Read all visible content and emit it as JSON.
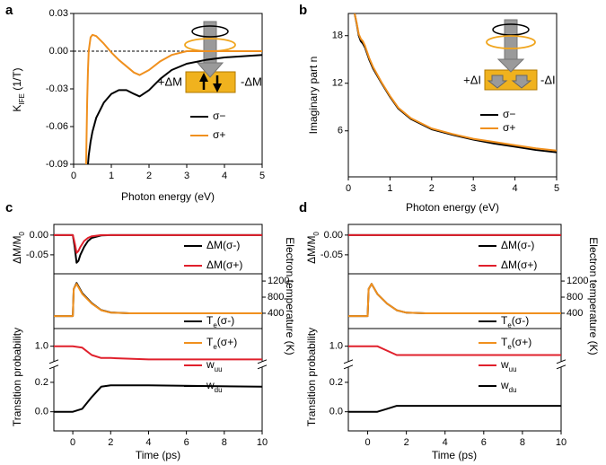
{
  "chart_data": [
    {
      "type": "line",
      "panel": "a",
      "xlabel": "Photon energy (eV)",
      "ylabel": "KIFE (1/T)",
      "xlim": [
        0,
        5
      ],
      "xticks": [
        0,
        1,
        2,
        3,
        4,
        5
      ],
      "ylim": [
        -0.09,
        0.03
      ],
      "yticks": [
        -0.09,
        -0.06,
        -0.03,
        {
          "value": 0,
          "label": "0.00"
        },
        0.03
      ],
      "zero_line": "dashed",
      "legend": "lower right",
      "annotations": [
        "+ΔM",
        "-ΔM"
      ],
      "x": [
        0.33,
        0.36,
        0.38,
        0.4,
        0.45,
        0.5,
        0.6,
        0.8,
        1.0,
        1.2,
        1.4,
        1.6,
        1.75,
        2.0,
        2.3,
        2.6,
        3.0,
        3.5,
        4.0,
        4.5,
        5.0
      ],
      "series": [
        {
          "name": "σ−",
          "color": "#000000",
          "values": [
            null,
            null,
            -0.09,
            -0.083,
            -0.072,
            -0.064,
            -0.053,
            -0.041,
            -0.034,
            -0.031,
            -0.031,
            -0.034,
            -0.036,
            -0.031,
            -0.022,
            -0.015,
            -0.01,
            -0.007,
            -0.005,
            -0.004,
            -0.003
          ]
        },
        {
          "name": "σ+",
          "color": "#f0901e",
          "values": [
            -0.09,
            -0.04,
            -0.015,
            0.0,
            0.011,
            0.013,
            0.012,
            0.006,
            -0.001,
            -0.007,
            -0.012,
            -0.017,
            -0.019,
            -0.015,
            -0.008,
            -0.003,
            0.0,
            0.0,
            0.0,
            0.0,
            0.0
          ]
        }
      ]
    },
    {
      "type": "line",
      "panel": "b",
      "xlabel": "Photon energy (eV)",
      "ylabel": "Imaginary part n",
      "xlim": [
        0,
        5
      ],
      "xticks": [
        0,
        1,
        2,
        3,
        4,
        5
      ],
      "ylim": [
        0.2,
        20.8
      ],
      "yticks": [
        6,
        12,
        18
      ],
      "legend": "lower right",
      "annotations": [
        "+ΔI",
        "-ΔI"
      ],
      "x": [
        0.15,
        0.2,
        0.25,
        0.3,
        0.35,
        0.4,
        0.5,
        0.6,
        0.8,
        1.0,
        1.2,
        1.5,
        2.0,
        2.5,
        3.0,
        3.5,
        4.0,
        4.5,
        5.0
      ],
      "series": [
        {
          "name": "σ−",
          "color": "#000000",
          "values": [
            20.8,
            19.5,
            18.0,
            17.3,
            17.0,
            16.5,
            15.0,
            13.8,
            12.0,
            10.3,
            8.8,
            7.5,
            6.2,
            5.5,
            4.9,
            4.4,
            4.0,
            3.6,
            3.3
          ]
        },
        {
          "name": "σ+",
          "color": "#f0901e",
          "values": [
            20.8,
            19.6,
            18.2,
            17.6,
            17.3,
            16.7,
            15.2,
            14.0,
            12.1,
            10.4,
            8.9,
            7.6,
            6.3,
            5.6,
            5.0,
            4.6,
            4.2,
            3.8,
            3.5
          ]
        }
      ]
    },
    {
      "type": "line",
      "panel": "c",
      "ylabel": "ΔM/M0",
      "xlim": [
        -1,
        10
      ],
      "ylim": [
        -0.098,
        0.027
      ],
      "yticks": [
        {
          "value": 0,
          "label": "0.00"
        },
        -0.05
      ],
      "legend": "lower right",
      "x": [
        -1,
        0,
        0.1,
        0.2,
        0.3,
        0.4,
        0.6,
        0.8,
        1.0,
        1.5,
        2,
        4,
        10
      ],
      "series": [
        {
          "name": "ΔM(σ-)",
          "color": "#000000",
          "values": [
            0,
            0,
            -0.03,
            -0.07,
            -0.065,
            -0.05,
            -0.03,
            -0.015,
            -0.007,
            -0.001,
            0,
            0,
            0
          ]
        },
        {
          "name": "ΔM(σ+)",
          "color": "#e0202c",
          "values": [
            0,
            0,
            -0.02,
            -0.045,
            -0.04,
            -0.03,
            -0.015,
            -0.007,
            -0.003,
            0,
            0,
            0,
            0
          ]
        }
      ]
    },
    {
      "type": "line",
      "y2label": "Electron temperature (K)",
      "xlim": [
        -1,
        10
      ],
      "y2lim": [
        20,
        1380
      ],
      "y2ticks": [
        400,
        800,
        1200
      ],
      "legend": "lower right",
      "x": [
        -1,
        0,
        0.05,
        0.2,
        0.5,
        1.0,
        1.5,
        2,
        3,
        10
      ],
      "series": [
        {
          "name": "Te(σ-)",
          "color": "#000000",
          "axis": "y2",
          "values": [
            330,
            330,
            1000,
            1150,
            900,
            650,
            480,
            420,
            400,
            400
          ]
        },
        {
          "name": "Te(σ+)",
          "color": "#f0901e",
          "axis": "y2",
          "values": [
            330,
            330,
            1000,
            1130,
            880,
            640,
            475,
            415,
            398,
            398
          ]
        }
      ]
    },
    {
      "type": "line",
      "ylabel": "Transition probability",
      "xlabel": "Time (ps)",
      "xlim": [
        -1,
        10
      ],
      "xticks": [
        0,
        2,
        4,
        6,
        8,
        10
      ],
      "ylim": [
        -0.13,
        1.12
      ],
      "ybreak": [
        0.28,
        0.92
      ],
      "yticks": [
        {
          "value": 0,
          "label": "0.0"
        },
        0.2,
        {
          "value": 1,
          "label": "1.0"
        }
      ],
      "legend": "lower right",
      "x": [
        -1,
        0,
        0.5,
        1.0,
        1.5,
        2,
        4,
        10
      ],
      "series": [
        {
          "name": "wuu",
          "color": "#e0202c",
          "values": [
            1.0,
            1.0,
            0.99,
            0.94,
            0.92,
            0.92,
            0.91,
            0.91
          ]
        },
        {
          "name": "wdu",
          "color": "#000000",
          "values": [
            0,
            0,
            0.02,
            0.1,
            0.17,
            0.18,
            0.18,
            0.17
          ]
        }
      ]
    },
    {
      "type": "line",
      "panel": "d",
      "ylabel": "ΔM/M0",
      "xlim": [
        -1,
        10
      ],
      "ylim": [
        -0.098,
        0.027
      ],
      "yticks": [
        {
          "value": 0,
          "label": "0.00"
        },
        -0.05
      ],
      "legend": "lower right",
      "x": [
        -1,
        0,
        0.1,
        0.2,
        0.3,
        0.4,
        0.6,
        0.8,
        1.0,
        1.5,
        2,
        4,
        10
      ],
      "series": [
        {
          "name": "ΔM(σ-)",
          "color": "#000000",
          "values": [
            0,
            0,
            0,
            0,
            0,
            0,
            0,
            0,
            0,
            0,
            0,
            0,
            0
          ]
        },
        {
          "name": "ΔM(σ+)",
          "color": "#e0202c",
          "values": [
            0,
            0,
            0,
            0,
            0,
            0,
            0,
            0,
            0,
            0,
            0,
            0,
            0
          ]
        }
      ]
    },
    {
      "type": "line",
      "y2label": "Electron temperature (K)",
      "xlim": [
        -1,
        10
      ],
      "y2lim": [
        20,
        1380
      ],
      "y2ticks": [
        400,
        800,
        1200
      ],
      "legend": "lower right",
      "x": [
        -1,
        0,
        0.05,
        0.2,
        0.5,
        1.0,
        1.5,
        2,
        3,
        10
      ],
      "series": [
        {
          "name": "Te(σ-)",
          "color": "#000000",
          "axis": "y2",
          "values": [
            330,
            330,
            1000,
            1130,
            880,
            640,
            475,
            415,
            400,
            400
          ]
        },
        {
          "name": "Te(σ+)",
          "color": "#f0901e",
          "axis": "y2",
          "values": [
            330,
            330,
            1000,
            1130,
            880,
            640,
            475,
            415,
            400,
            400
          ]
        }
      ]
    },
    {
      "type": "line",
      "ylabel": "Transition probability",
      "xlabel": "Time (ps)",
      "xlim": [
        -1,
        10
      ],
      "xticks": [
        0,
        2,
        4,
        6,
        8,
        10
      ],
      "ylim": [
        -0.13,
        1.12
      ],
      "ybreak": [
        0.28,
        0.92
      ],
      "yticks": [
        {
          "value": 0,
          "label": "0.0"
        },
        0.2,
        {
          "value": 1,
          "label": "1.0"
        }
      ],
      "legend": "lower right",
      "x": [
        -1,
        0,
        0.5,
        1.0,
        1.5,
        2,
        4,
        10
      ],
      "series": [
        {
          "name": "wuu",
          "color": "#e0202c",
          "values": [
            1.0,
            1.0,
            1.0,
            0.97,
            0.94,
            0.94,
            0.94,
            0.94
          ]
        },
        {
          "name": "wdu",
          "color": "#000000",
          "values": [
            0,
            0,
            0,
            0.02,
            0.04,
            0.04,
            0.04,
            0.04
          ]
        }
      ]
    }
  ]
}
